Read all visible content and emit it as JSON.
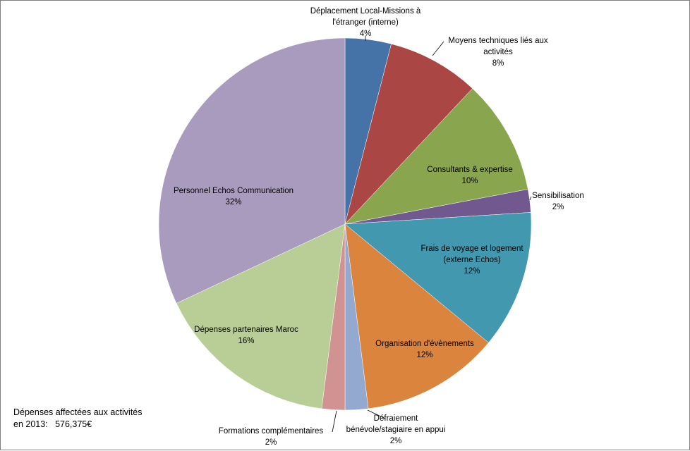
{
  "chart_data": {
    "type": "pie",
    "slices": [
      {
        "name": [
          "Déplacement Local-Missions à",
          "l'étranger (interne)"
        ],
        "value": 4,
        "pct_label": "4%",
        "color": "#4572A7"
      },
      {
        "name": [
          "Moyens techniques liés aux",
          "activités"
        ],
        "value": 8,
        "pct_label": "8%",
        "color": "#AA4643"
      },
      {
        "name": [
          "Consultants & expertise"
        ],
        "value": 10,
        "pct_label": "10%",
        "color": "#89A54E"
      },
      {
        "name": [
          "Sensibilisation"
        ],
        "value": 2,
        "pct_label": "2%",
        "color": "#71588F"
      },
      {
        "name": [
          "Frais de voyage et  logement",
          "(externe  Echos)"
        ],
        "value": 12,
        "pct_label": "12%",
        "color": "#4198AF"
      },
      {
        "name": [
          "Organisation d'évènements"
        ],
        "value": 12,
        "pct_label": "12%",
        "color": "#DB843D"
      },
      {
        "name": [
          "Défraiement",
          "bénévole/stagiaire en appui"
        ],
        "value": 2,
        "pct_label": "2%",
        "color": "#93A9CF"
      },
      {
        "name": [
          "Formations complémentaires"
        ],
        "value": 2,
        "pct_label": "2%",
        "color": "#D19392"
      },
      {
        "name": [
          "Dépenses  partenaires Maroc"
        ],
        "value": 16,
        "pct_label": "16%",
        "color": "#B9CD96"
      },
      {
        "name": [
          "Personnel Echos Communication"
        ],
        "value": 32,
        "pct_label": "32%",
        "color": "#A99BBD"
      }
    ],
    "start": "top",
    "direction": "clockwise"
  },
  "note": {
    "line1": "Dépenses affectées aux activités",
    "line2": "en 2013:   576,375€"
  }
}
